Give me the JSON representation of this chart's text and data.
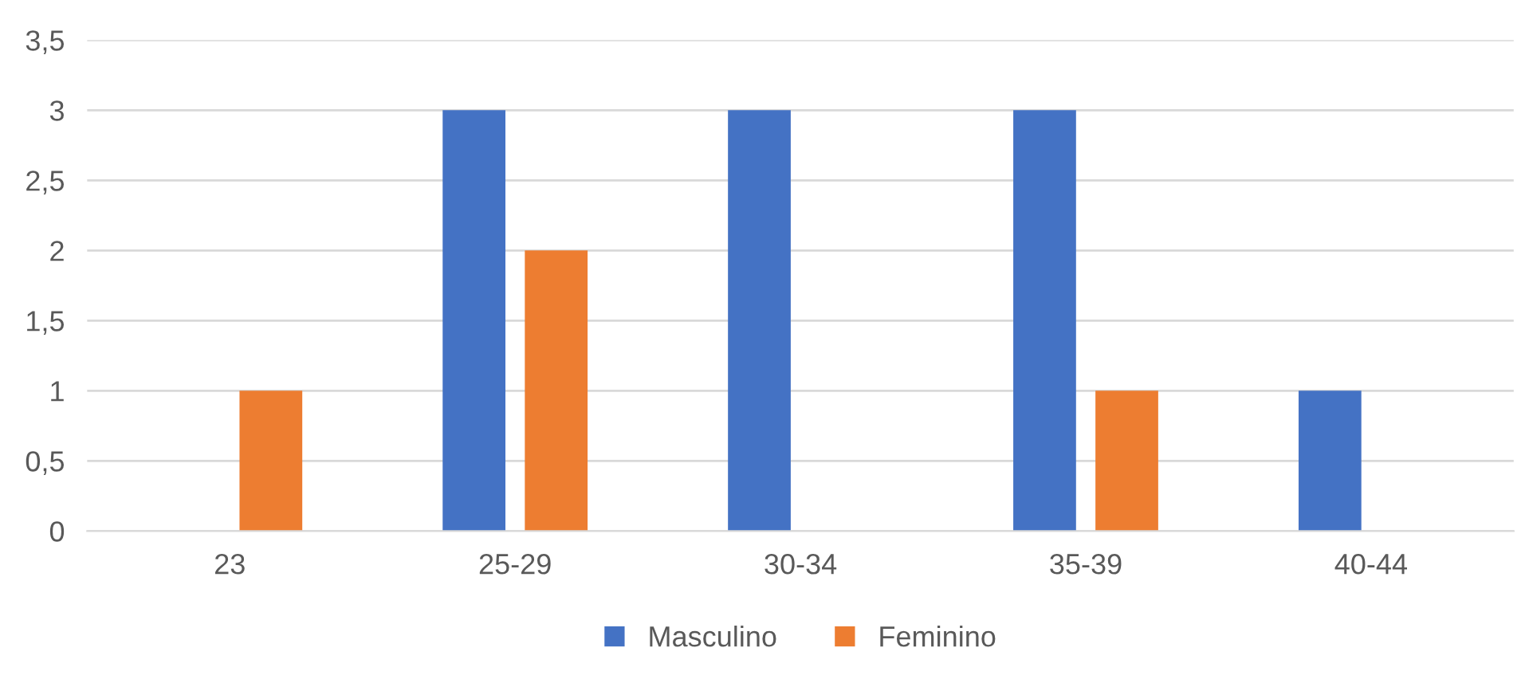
{
  "chart_data": {
    "type": "bar",
    "categories": [
      "23",
      "25-29",
      "30-34",
      "35-39",
      "40-44"
    ],
    "series": [
      {
        "name": "Masculino",
        "color": "#4472c4",
        "values": [
          null,
          3,
          3,
          3,
          1
        ]
      },
      {
        "name": "Feminino",
        "color": "#ed7d31",
        "values": [
          1,
          2,
          null,
          1,
          null
        ]
      }
    ],
    "ylim": [
      0,
      3.5
    ],
    "yticks": [
      0,
      {
        "value": 0.5,
        "label": "0,5"
      },
      1,
      {
        "value": 1.5,
        "label": "1,5"
      },
      2,
      {
        "value": 2.5,
        "label": "2,5"
      },
      3,
      {
        "value": 3.5,
        "label": "3,5"
      }
    ],
    "grid": "y",
    "legend": "bottom"
  }
}
